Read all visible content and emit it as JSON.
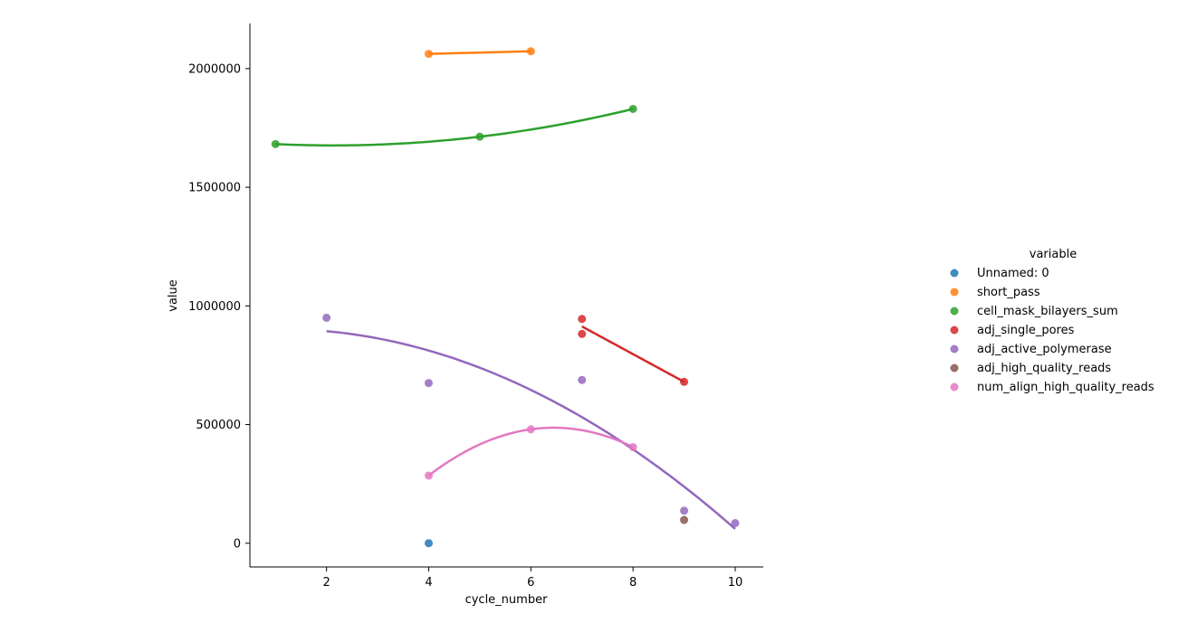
{
  "chart_data": {
    "type": "scatter",
    "title": "",
    "xlabel": "cycle_number",
    "ylabel": "value",
    "xlim": [
      0.5,
      10.55
    ],
    "ylim": [
      -100000,
      2190000
    ],
    "xticks": [
      2,
      4,
      6,
      8,
      10
    ],
    "xtick_labels": [
      "2",
      "4",
      "6",
      "8",
      "10"
    ],
    "yticks": [
      0,
      500000,
      1000000,
      1500000,
      2000000
    ],
    "ytick_labels": [
      "0",
      "500000",
      "1000000",
      "1500000",
      "2000000"
    ],
    "grid": false,
    "legend_title": "variable",
    "legend_position": "right",
    "fit": "quadratic regression per series",
    "series": [
      {
        "name": "Unnamed: 0",
        "color": "#1f77b4",
        "points": [
          [
            4,
            0
          ]
        ]
      },
      {
        "name": "short_pass",
        "color": "#ff7f0e",
        "points": [
          [
            4,
            2062000
          ],
          [
            6,
            2073000
          ]
        ]
      },
      {
        "name": "cell_mask_bilayers_sum",
        "color": "#2ca02c",
        "points": [
          [
            1,
            1682000
          ],
          [
            5,
            1713000
          ],
          [
            8,
            1830000
          ]
        ]
      },
      {
        "name": "adj_single_pores",
        "color": "#d62728",
        "points": [
          [
            7,
            945000
          ],
          [
            7,
            882000
          ],
          [
            9,
            680000
          ]
        ]
      },
      {
        "name": "adj_active_polymerase",
        "color": "#9467bd",
        "points": [
          [
            2,
            950000
          ],
          [
            4,
            675000
          ],
          [
            7,
            688000
          ],
          [
            9,
            137000
          ],
          [
            10,
            85000
          ]
        ]
      },
      {
        "name": "adj_high_quality_reads",
        "color": "#8c564b",
        "points": [
          [
            9,
            98000
          ]
        ]
      },
      {
        "name": "num_align_high_quality_reads",
        "color": "#e377c2",
        "points": [
          [
            4,
            285000
          ],
          [
            6,
            480000
          ],
          [
            8,
            405000
          ]
        ]
      }
    ]
  }
}
